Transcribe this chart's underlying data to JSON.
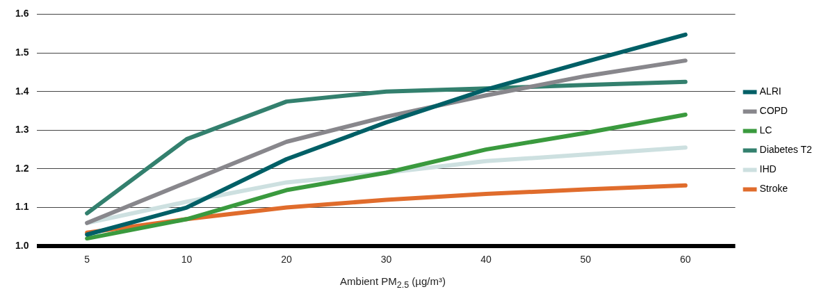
{
  "chart_data": {
    "type": "line",
    "xlabel": "Ambient PM$_{2.5}$ (µg/m³)",
    "categories": [
      "5",
      "10",
      "20",
      "30",
      "40",
      "50",
      "60"
    ],
    "series": [
      {
        "name": "ALRI",
        "color": "#005f66",
        "values": [
          1.03,
          1.1,
          1.225,
          1.32,
          1.405,
          1.477,
          1.547
        ]
      },
      {
        "name": "COPD",
        "color": "#88878c",
        "values": [
          1.06,
          1.165,
          1.27,
          1.335,
          1.39,
          1.44,
          1.48
        ]
      },
      {
        "name": "LC",
        "color": "#3a9a3e",
        "values": [
          1.02,
          1.07,
          1.145,
          1.19,
          1.25,
          1.293,
          1.34
        ]
      },
      {
        "name": "Diabetes T2",
        "color": "#33806e",
        "values": [
          1.085,
          1.277,
          1.374,
          1.4,
          1.408,
          1.417,
          1.425
        ]
      },
      {
        "name": "IHD",
        "color": "#cde0e0",
        "values": [
          1.06,
          1.115,
          1.165,
          1.19,
          1.22,
          1.237,
          1.255
        ]
      },
      {
        "name": "Stroke",
        "color": "#e06c2c",
        "values": [
          1.035,
          1.07,
          1.1,
          1.12,
          1.135,
          1.147,
          1.157
        ]
      }
    ],
    "ylim": [
      1.0,
      1.6
    ],
    "yticks": [
      {
        "value": 1,
        "label": "1.0"
      },
      {
        "value": 1.1,
        "label": "1.1"
      },
      {
        "value": 1.2,
        "label": "1.2"
      },
      {
        "value": 1.3,
        "label": "1.3"
      },
      {
        "value": 1.4,
        "label": "1.4"
      },
      {
        "value": 1.5,
        "label": "1.5"
      },
      {
        "value": 1.6,
        "label": "1.6"
      }
    ],
    "grid": "y",
    "legend": "right",
    "marker": "none",
    "line_style": "solid"
  }
}
